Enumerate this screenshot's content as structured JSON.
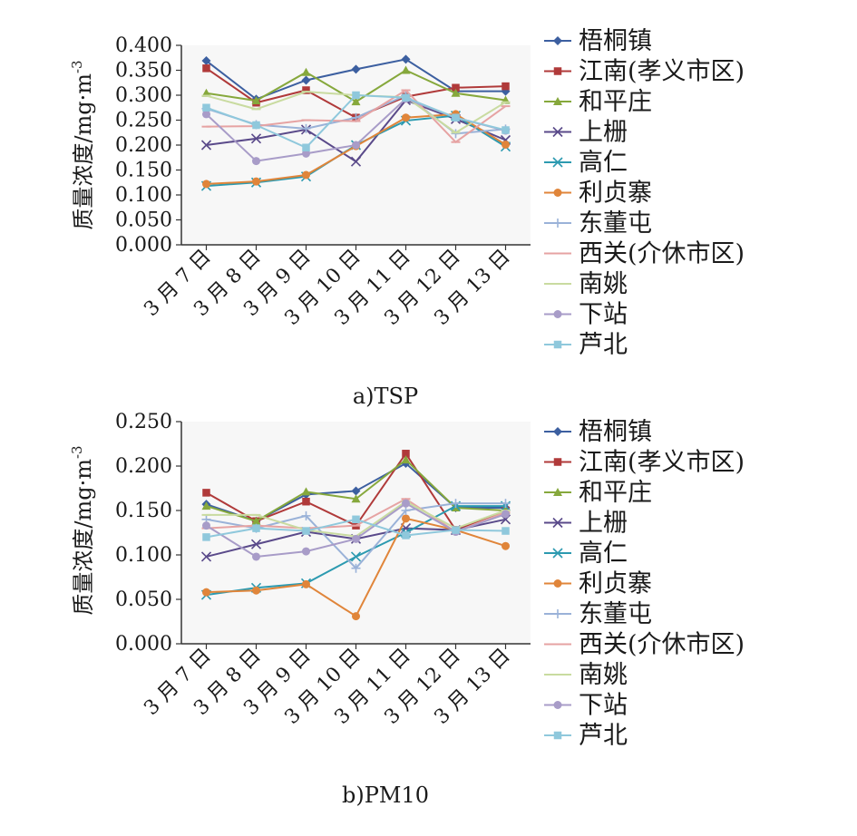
{
  "figure": {
    "charts": [
      {
        "caption": "a)TSP",
        "ylabel": "质量浓度/mg·m"
      },
      {
        "caption": "b)PM10",
        "ylabel": "质量浓度/mg·m"
      }
    ]
  },
  "chart_data": [
    {
      "type": "line",
      "title": "a)TSP",
      "xlabel": "",
      "ylabel": "质量浓度/mg·m⁻³",
      "ylim": [
        0,
        0.4
      ],
      "y_ticks": [
        "0.000",
        "0.050",
        "0.100",
        "0.150",
        "0.200",
        "0.250",
        "0.300",
        "0.350",
        "0.400"
      ],
      "categories": [
        "3 月 7 日",
        "3 月 8 日",
        "3 月 9 日",
        "3 月 10 日",
        "3 月 11 日",
        "3 月 12 日",
        "3 月 13 日"
      ],
      "grid": false,
      "legend_position": "right",
      "series": [
        {
          "name": "梧桐镇",
          "color": "#3c5fa0",
          "marker": "diamond",
          "values": [
            0.369,
            0.292,
            0.33,
            0.352,
            0.372,
            0.308,
            0.308
          ]
        },
        {
          "name": "江南(孝义市区)",
          "color": "#b03a3a",
          "marker": "square",
          "values": [
            0.354,
            0.285,
            0.31,
            0.255,
            0.297,
            0.315,
            0.318
          ]
        },
        {
          "name": "和平庄",
          "color": "#86a83c",
          "marker": "triangle",
          "values": [
            0.304,
            0.289,
            0.346,
            0.287,
            0.35,
            0.304,
            0.29
          ]
        },
        {
          "name": "上栅",
          "color": "#5a4a8a",
          "marker": "x",
          "values": [
            0.2,
            0.213,
            0.231,
            0.167,
            0.29,
            0.252,
            0.21
          ]
        },
        {
          "name": "高仁",
          "color": "#2c9ab0",
          "marker": "x",
          "values": [
            0.118,
            0.125,
            0.137,
            0.2,
            0.249,
            0.259,
            0.197
          ]
        },
        {
          "name": "利贞寨",
          "color": "#e0853a",
          "marker": "circle",
          "values": [
            0.122,
            0.127,
            0.14,
            0.198,
            0.255,
            0.262,
            0.201
          ]
        },
        {
          "name": "东董屯",
          "color": "#9ab2d8",
          "marker": "plus",
          "values": [
            0.273,
            0.241,
            0.233,
            0.255,
            0.3,
            0.223,
            0.232
          ]
        },
        {
          "name": "西关(介休市区)",
          "color": "#e6a3a3",
          "marker": "dash",
          "values": [
            0.237,
            0.238,
            0.25,
            0.248,
            0.31,
            0.206,
            0.278
          ]
        },
        {
          "name": "南姚",
          "color": "#c9dba0",
          "marker": "dash",
          "values": [
            0.299,
            0.272,
            0.307,
            0.3,
            0.296,
            0.225,
            0.286
          ]
        },
        {
          "name": "下站",
          "color": "#a89cc8",
          "marker": "circle",
          "values": [
            0.262,
            0.168,
            0.183,
            0.2,
            0.293,
            0.255,
            0.229
          ]
        },
        {
          "name": "芦北",
          "color": "#8fc8dc",
          "marker": "square",
          "values": [
            0.275,
            0.24,
            0.195,
            0.3,
            0.295,
            0.255,
            0.23
          ]
        }
      ]
    },
    {
      "type": "line",
      "title": "b)PM10",
      "xlabel": "",
      "ylabel": "质量浓度/mg·m⁻³",
      "ylim": [
        0,
        0.25
      ],
      "y_ticks": [
        "0.000",
        "0.050",
        "0.100",
        "0.150",
        "0.200",
        "0.250"
      ],
      "categories": [
        "3 月 7 日",
        "3 月 8 日",
        "3 月 9 日",
        "3 月 10 日",
        "3 月 11 日",
        "3 月 12 日",
        "3 月 13 日"
      ],
      "grid": false,
      "legend_position": "right",
      "series": [
        {
          "name": "梧桐镇",
          "color": "#3c5fa0",
          "marker": "diamond",
          "values": [
            0.157,
            0.138,
            0.168,
            0.172,
            0.203,
            0.153,
            0.153
          ]
        },
        {
          "name": "江南(孝义市区)",
          "color": "#b03a3a",
          "marker": "square",
          "values": [
            0.17,
            0.138,
            0.16,
            0.133,
            0.214,
            0.128,
            0.15
          ]
        },
        {
          "name": "和平庄",
          "color": "#86a83c",
          "marker": "triangle",
          "values": [
            0.155,
            0.138,
            0.171,
            0.163,
            0.207,
            0.153,
            0.15
          ]
        },
        {
          "name": "上栅",
          "color": "#5a4a8a",
          "marker": "x",
          "values": [
            0.098,
            0.112,
            0.126,
            0.118,
            0.13,
            0.128,
            0.14
          ]
        },
        {
          "name": "高仁",
          "color": "#2c9ab0",
          "marker": "x",
          "values": [
            0.055,
            0.063,
            0.068,
            0.098,
            0.125,
            0.155,
            0.155
          ]
        },
        {
          "name": "利贞寨",
          "color": "#e0853a",
          "marker": "circle",
          "values": [
            0.058,
            0.06,
            0.067,
            0.031,
            0.141,
            0.128,
            0.11
          ]
        },
        {
          "name": "东董屯",
          "color": "#9ab2d8",
          "marker": "plus",
          "values": [
            0.14,
            0.13,
            0.144,
            0.085,
            0.15,
            0.158,
            0.158
          ]
        },
        {
          "name": "西关(介休市区)",
          "color": "#e6a3a3",
          "marker": "dash",
          "values": [
            0.13,
            0.133,
            0.13,
            0.133,
            0.163,
            0.126,
            0.148
          ]
        },
        {
          "name": "南姚",
          "color": "#c9dba0",
          "marker": "dash",
          "values": [
            0.145,
            0.145,
            0.128,
            0.121,
            0.16,
            0.13,
            0.15
          ]
        },
        {
          "name": "下站",
          "color": "#a89cc8",
          "marker": "circle",
          "values": [
            0.133,
            0.098,
            0.104,
            0.118,
            0.158,
            0.126,
            0.146
          ]
        },
        {
          "name": "芦北",
          "color": "#8fc8dc",
          "marker": "square",
          "values": [
            0.12,
            0.13,
            0.127,
            0.14,
            0.122,
            0.128,
            0.127
          ]
        }
      ]
    }
  ]
}
